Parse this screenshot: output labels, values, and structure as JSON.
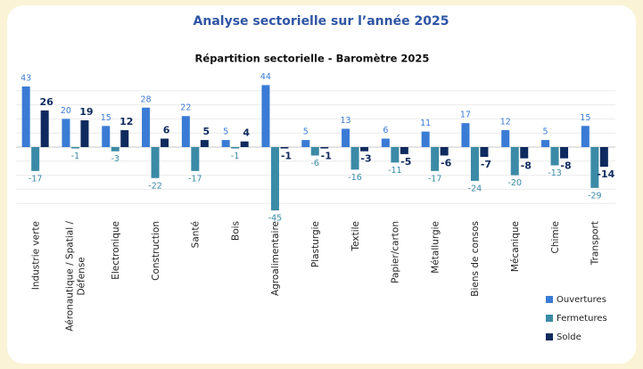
{
  "header": {
    "title": "Analyse sectorielle sur l’année 2025"
  },
  "chart_data": {
    "type": "bar",
    "title": "Répartition sectorielle - Baromètre 2025",
    "categories": [
      "Industrie verte",
      "Aéronautique / Spatial / Défense",
      "Electronique",
      "Construction",
      "Santé",
      "Bois",
      "Agroalimentaire",
      "Plasturgie",
      "Textile",
      "Papier/carton",
      "Métallurgie",
      "Biens de consos",
      "Mécanique",
      "Chimie",
      "Transport"
    ],
    "series": [
      {
        "name": "Ouvertures",
        "color": "#3a7bd5",
        "values": [
          43,
          20,
          15,
          28,
          22,
          5,
          44,
          5,
          13,
          6,
          11,
          17,
          12,
          5,
          15
        ]
      },
      {
        "name": "Fermetures",
        "color": "#3b8aa6",
        "values": [
          -17,
          -1,
          -3,
          -22,
          -17,
          -1,
          -45,
          -6,
          -16,
          -11,
          -17,
          -24,
          -20,
          -13,
          -29
        ]
      },
      {
        "name": "Solde",
        "color": "#0f2a5e",
        "values": [
          26,
          19,
          12,
          6,
          5,
          4,
          -1,
          -1,
          -3,
          -5,
          -6,
          -7,
          -8,
          -8,
          -14
        ]
      }
    ],
    "ylim": [
      -50,
      50
    ],
    "yticks": [
      -40,
      -30,
      -20,
      -10,
      0,
      10,
      20,
      30,
      40
    ],
    "grid": true,
    "legend": "bottom-right"
  }
}
